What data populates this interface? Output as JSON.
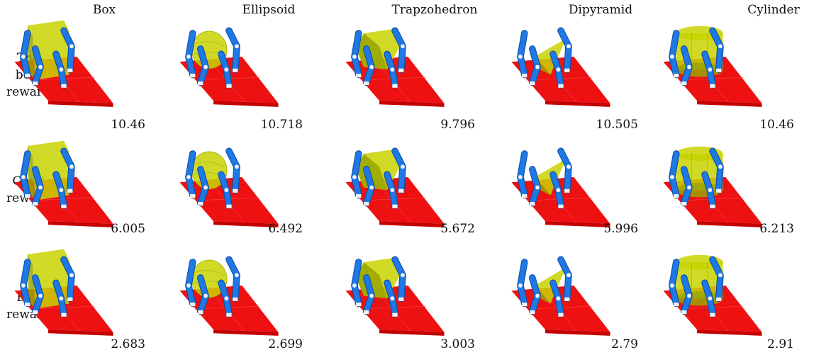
{
  "columns": [
    "Box",
    "Ellipsoid",
    "Trapzohedron",
    "Dipyramid",
    "Cylinder"
  ],
  "rows": [
    {
      "label_lines": [
        "The",
        "best",
        "reward"
      ],
      "rewards": [
        "10.46",
        "10.718",
        "9.796",
        "10.505",
        "10.46"
      ]
    },
    {
      "label_lines": [
        "Good",
        "reward"
      ],
      "rewards": [
        "6.005",
        "6.492",
        "5.672",
        "5.996",
        "6.213"
      ]
    },
    {
      "label_lines": [
        "Bad",
        "reward"
      ],
      "rewards": [
        "2.683",
        "2.699",
        "3.003",
        "2.79",
        "2.91"
      ]
    }
  ],
  "colors": {
    "floor": "#ee1111",
    "floor_edge": "#c40000",
    "object": "#c8d400",
    "object_dark": "#9aa600",
    "leg": "#1e78e6",
    "leg_dark": "#0e4fa8",
    "joint": "#f2f2f2"
  }
}
